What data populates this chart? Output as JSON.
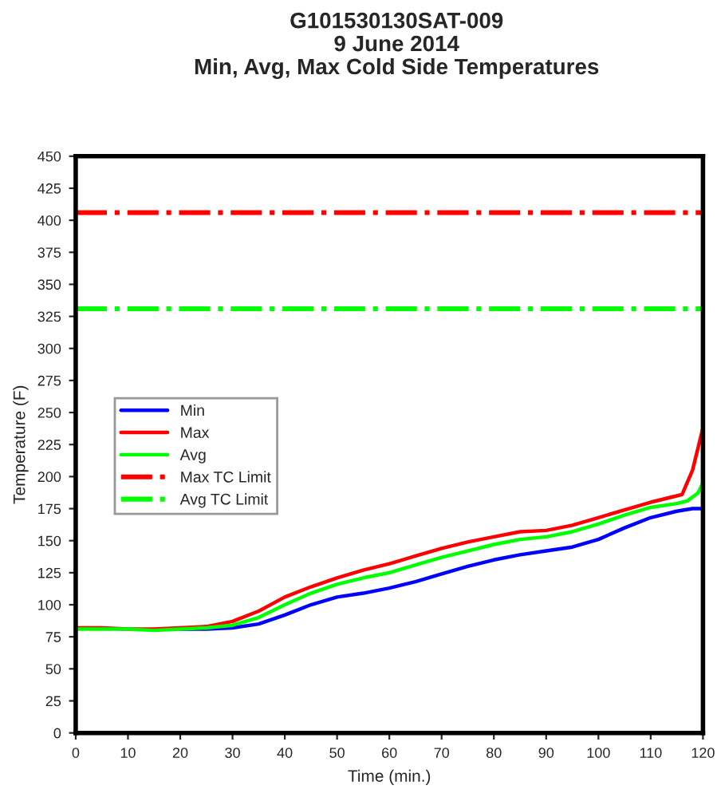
{
  "chart_data": {
    "type": "line",
    "title": "G101530130SAT-009\n9 June 2014\nMin, Avg, Max Cold Side Temperatures",
    "xlabel": "Time (min.)",
    "ylabel": "Temperature (F)",
    "xlim": [
      0,
      120
    ],
    "xticks": [
      0,
      10,
      20,
      30,
      40,
      50,
      60,
      70,
      80,
      90,
      100,
      110,
      120
    ],
    "ylim": [
      0,
      450
    ],
    "yticks": [
      0,
      25,
      50,
      75,
      100,
      125,
      150,
      175,
      200,
      225,
      250,
      275,
      300,
      325,
      350,
      375,
      400,
      425,
      450
    ],
    "grid": false,
    "legend": "left",
    "marker": "none",
    "line_style": "solid",
    "series": [
      {
        "name": "Min",
        "color": "#0000ff",
        "x": [
          20,
          25,
          30,
          35,
          40,
          45,
          50,
          55,
          60,
          65,
          70,
          75,
          80,
          85,
          90,
          95,
          100,
          105,
          110,
          115,
          118,
          120
        ],
        "values": [
          81,
          81,
          82,
          85,
          92,
          100,
          106,
          109,
          113,
          118,
          124,
          130,
          135,
          139,
          142,
          145,
          151,
          160,
          168,
          173,
          175,
          175
        ]
      },
      {
        "name": "Max",
        "color": "#ff0000",
        "x": [
          0,
          5,
          10,
          15,
          20,
          25,
          30,
          35,
          40,
          45,
          50,
          55,
          60,
          65,
          70,
          75,
          80,
          85,
          90,
          95,
          100,
          105,
          110,
          115,
          116,
          118,
          120
        ],
        "values": [
          82,
          82,
          81,
          81,
          82,
          83,
          87,
          95,
          106,
          114,
          121,
          127,
          132,
          138,
          144,
          149,
          153,
          157,
          158,
          162,
          168,
          174,
          180,
          185,
          186,
          205,
          238
        ]
      },
      {
        "name": "Avg",
        "color": "#00ff00",
        "x": [
          0,
          5,
          10,
          15,
          20,
          25,
          30,
          35,
          40,
          45,
          50,
          55,
          60,
          65,
          70,
          75,
          80,
          85,
          90,
          95,
          100,
          105,
          110,
          115,
          117,
          119,
          120
        ],
        "values": [
          81,
          81,
          81,
          80,
          81,
          82,
          84,
          90,
          100,
          109,
          116,
          121,
          125,
          131,
          137,
          142,
          147,
          151,
          153,
          157,
          163,
          170,
          176,
          179,
          181,
          187,
          195
        ]
      }
    ],
    "ref_lines": [
      {
        "axis": "y",
        "value": 406,
        "label": "Max TC Limit",
        "color": "#ff0000",
        "line_style": "dashdot"
      },
      {
        "axis": "y",
        "value": 331,
        "label": "Avg TC Limit",
        "color": "#00ff00",
        "line_style": "dashdot"
      }
    ]
  }
}
